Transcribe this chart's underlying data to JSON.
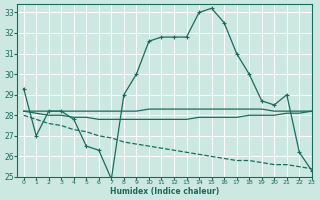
{
  "xlabel": "Humidex (Indice chaleur)",
  "bg_color": "#cce8e0",
  "grid_color": "#b8d8d0",
  "line_color": "#1a6b5e",
  "xlim": [
    -0.5,
    23
  ],
  "ylim": [
    25,
    33.4
  ],
  "yticks": [
    25,
    26,
    27,
    28,
    29,
    30,
    31,
    32,
    33
  ],
  "xticks": [
    0,
    1,
    2,
    3,
    4,
    5,
    6,
    7,
    8,
    9,
    10,
    11,
    12,
    13,
    14,
    15,
    16,
    17,
    18,
    19,
    20,
    21,
    22,
    23
  ],
  "series": [
    {
      "x": [
        0,
        1,
        2,
        3,
        4,
        5,
        6,
        7,
        8,
        9,
        10,
        11,
        12,
        13,
        14,
        15,
        16,
        17,
        18,
        19,
        20,
        21,
        22,
        23
      ],
      "y": [
        29.3,
        27.0,
        28.2,
        28.2,
        27.8,
        26.5,
        26.3,
        24.9,
        29.0,
        30.0,
        31.6,
        31.8,
        31.8,
        31.8,
        33.0,
        33.2,
        32.5,
        31.0,
        30.0,
        28.7,
        28.5,
        29.0,
        26.2,
        25.3
      ],
      "marker": "+",
      "linestyle": "-"
    },
    {
      "x": [
        0,
        1,
        2,
        3,
        4,
        5,
        6,
        7,
        8,
        9,
        10,
        11,
        12,
        13,
        14,
        15,
        16,
        17,
        18,
        19,
        20,
        21,
        22,
        23
      ],
      "y": [
        28.2,
        28.2,
        28.2,
        28.2,
        28.2,
        28.2,
        28.2,
        28.2,
        28.2,
        28.2,
        28.3,
        28.3,
        28.3,
        28.3,
        28.3,
        28.3,
        28.3,
        28.3,
        28.3,
        28.3,
        28.2,
        28.2,
        28.2,
        28.2
      ],
      "marker": null,
      "linestyle": "-"
    },
    {
      "x": [
        0,
        1,
        2,
        3,
        4,
        5,
        6,
        7,
        8,
        9,
        10,
        11,
        12,
        13,
        14,
        15,
        16,
        17,
        18,
        19,
        20,
        21,
        22,
        23
      ],
      "y": [
        28.2,
        28.1,
        28.0,
        28.0,
        27.9,
        27.9,
        27.8,
        27.8,
        27.8,
        27.8,
        27.8,
        27.8,
        27.8,
        27.8,
        27.9,
        27.9,
        27.9,
        27.9,
        28.0,
        28.0,
        28.0,
        28.1,
        28.1,
        28.2
      ],
      "marker": null,
      "linestyle": "-"
    },
    {
      "x": [
        0,
        1,
        2,
        3,
        4,
        5,
        6,
        7,
        8,
        9,
        10,
        11,
        12,
        13,
        14,
        15,
        16,
        17,
        18,
        19,
        20,
        21,
        22,
        23
      ],
      "y": [
        28.0,
        27.8,
        27.6,
        27.5,
        27.3,
        27.2,
        27.0,
        26.9,
        26.7,
        26.6,
        26.5,
        26.4,
        26.3,
        26.2,
        26.1,
        26.0,
        25.9,
        25.8,
        25.8,
        25.7,
        25.6,
        25.6,
        25.5,
        25.4
      ],
      "marker": null,
      "linestyle": "--"
    }
  ]
}
